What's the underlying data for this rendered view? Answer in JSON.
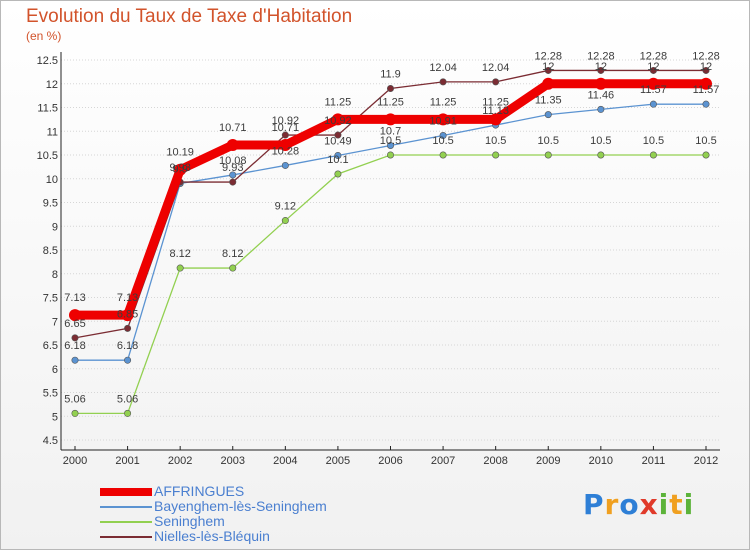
{
  "title": "Evolution du Taux de Taxe d'Habitation",
  "unit_label": "(en %)",
  "logo": {
    "letters": [
      {
        "ch": "P",
        "color": "#2e7fd6"
      },
      {
        "ch": "r",
        "color": "#f0a020"
      },
      {
        "ch": "o",
        "color": "#2e7fd6"
      },
      {
        "ch": "x",
        "color": "#e03a2a"
      },
      {
        "ch": "i",
        "color": "#5cb33a"
      },
      {
        "ch": "t",
        "color": "#f0a020"
      },
      {
        "ch": "i",
        "color": "#5cb33a"
      }
    ]
  },
  "chart_data": {
    "type": "line",
    "title": "Evolution du Taux de Taxe d'Habitation",
    "ylabel": "(en %)",
    "xlabel": "",
    "x": [
      "2000",
      "2001",
      "2002",
      "2003",
      "2004",
      "2005",
      "2006",
      "2007",
      "2008",
      "2009",
      "2010",
      "2011",
      "2012"
    ],
    "ylim": [
      4.5,
      12.5
    ],
    "yticks": [
      "4.5",
      "5",
      "5.5",
      "6",
      "6.5",
      "7",
      "7.5",
      "8",
      "8.5",
      "9",
      "9.5",
      "10",
      "10.5",
      "11",
      "11.5",
      "12",
      "12.5"
    ],
    "grid": "horizontal",
    "legend_position": "bottom-left",
    "series": [
      {
        "name": "AFFRINGUES",
        "color": "#ee0000",
        "values": [
          7.13,
          7.13,
          10.19,
          10.71,
          10.71,
          11.25,
          11.25,
          11.25,
          11.25,
          12,
          12,
          12,
          12
        ],
        "labels": [
          "7.13",
          "7.13",
          "10.19",
          "10.71",
          "10.71",
          "11.25",
          "11.25",
          "11.25",
          "11.25",
          "12",
          "12",
          "12",
          "12"
        ]
      },
      {
        "name": "Bayenghem-lès-Seninghem",
        "color": "#5b93d1",
        "values": [
          6.18,
          6.18,
          9.9,
          10.08,
          10.28,
          10.49,
          10.7,
          10.91,
          11.13,
          11.35,
          11.46,
          11.57,
          11.57
        ],
        "labels": [
          "6.18",
          "6.18",
          "9.9",
          "10.08",
          "10.28",
          "10.49",
          "10.7",
          "10.91",
          "11.13",
          "11.35",
          "11.46",
          "11.57",
          "11.57"
        ]
      },
      {
        "name": "Seninghem",
        "color": "#92d050",
        "values": [
          5.06,
          5.06,
          8.12,
          8.12,
          9.12,
          10.1,
          10.5,
          10.5,
          10.5,
          10.5,
          10.5,
          10.5,
          10.5
        ],
        "labels": [
          "5.06",
          "5.06",
          "8.12",
          "8.12",
          "9.12",
          "10.1",
          "10.5",
          "10.5",
          "10.5",
          "10.5",
          "10.5",
          "10.5",
          "10.5"
        ]
      },
      {
        "name": "Nielles-lès-Bléquin",
        "color": "#7b2c33",
        "values": [
          6.65,
          6.85,
          9.93,
          9.93,
          10.92,
          10.92,
          11.9,
          12.04,
          12.04,
          12.28,
          12.28,
          12.28,
          12.28
        ],
        "labels": [
          "6.65",
          "6.85",
          "9.93",
          "9.93",
          "10.92",
          "10.92",
          "11.9",
          "12.04",
          "12.04",
          "12.28",
          "12.28",
          "12.28",
          "12.28"
        ]
      }
    ]
  }
}
